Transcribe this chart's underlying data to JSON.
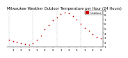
{
  "title": "Milwaukee Weather Outdoor Temperature per Hour (24 Hours)",
  "hours": [
    0,
    1,
    2,
    3,
    4,
    5,
    6,
    7,
    8,
    9,
    10,
    11,
    12,
    13,
    14,
    15,
    16,
    17,
    18,
    19,
    20,
    21,
    22,
    23
  ],
  "temps": [
    2.5,
    2.2,
    2.0,
    1.8,
    1.6,
    1.5,
    1.8,
    2.5,
    3.5,
    4.8,
    5.8,
    6.8,
    7.5,
    8.2,
    8.5,
    8.3,
    7.8,
    7.0,
    6.0,
    5.2,
    4.5,
    3.8,
    3.2,
    2.8
  ],
  "dot_color": "#cc0000",
  "bg_color": "#ffffff",
  "grid_color": "#999999",
  "ylim": [
    1,
    9
  ],
  "yticks": [
    1,
    2,
    3,
    4,
    5,
    6,
    7,
    8,
    9
  ],
  "ytick_labels": [
    "1",
    "2",
    "3",
    "4",
    "5",
    "6",
    "7",
    "8",
    "9"
  ],
  "xtick_positions": [
    1,
    3,
    5,
    7,
    9,
    11,
    13,
    15,
    17,
    19,
    21,
    23
  ],
  "xtick_labels": [
    "1",
    "3",
    "5",
    "1",
    "3",
    "5",
    "1",
    "3",
    "5",
    "1",
    "3",
    "5"
  ],
  "vgrid_positions": [
    0,
    6,
    12,
    18,
    24
  ],
  "legend_label": "Outdoor",
  "title_fontsize": 3.8,
  "tick_fontsize": 3.0,
  "legend_fontsize": 2.8,
  "dot_size": 1.5
}
